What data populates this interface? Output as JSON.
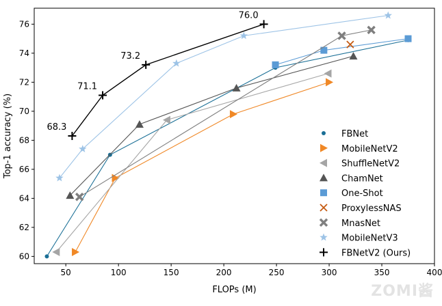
{
  "chart_data": {
    "type": "line",
    "xlabel": "FLOPs (M)",
    "ylabel": "Top-1 accuracy (%)",
    "xlim": [
      20,
      400
    ],
    "ylim": [
      59.5,
      77.1
    ],
    "xticks": [
      50,
      100,
      150,
      200,
      250,
      300,
      350,
      400
    ],
    "yticks": [
      60,
      62,
      64,
      66,
      68,
      70,
      72,
      74,
      76
    ],
    "grid": false,
    "legend_position": "bottom-right",
    "series": [
      {
        "name": "FBNet",
        "color": "#1a6f96",
        "marker": "circle",
        "x": [
          32,
          92,
          249,
          375
        ],
        "y": [
          60.0,
          67.0,
          73.0,
          74.9
        ]
      },
      {
        "name": "MobileNetV2",
        "color": "#f08826",
        "marker": "triangle-right",
        "x": [
          59,
          97,
          209,
          300
        ],
        "y": [
          60.3,
          65.4,
          69.8,
          72.0
        ]
      },
      {
        "name": "ShuffleNetV2",
        "color": "#a5a5a5",
        "marker": "triangle-left",
        "x": [
          41,
          146,
          299
        ],
        "y": [
          60.3,
          69.4,
          72.6
        ]
      },
      {
        "name": "ChamNet",
        "color": "#555555",
        "marker": "triangle-up",
        "x": [
          54,
          120,
          212,
          323
        ],
        "y": [
          64.2,
          69.1,
          71.6,
          73.8
        ]
      },
      {
        "name": "One-Shot",
        "color": "#5b9bd5",
        "marker": "square",
        "x": [
          249,
          295,
          375
        ],
        "y": [
          73.2,
          74.2,
          75.0
        ]
      },
      {
        "name": "ProxylessNAS",
        "color": "#c55a11",
        "marker": "x",
        "x": [
          320
        ],
        "y": [
          74.6
        ]
      },
      {
        "name": "MnasNet",
        "color": "#7f7f7f",
        "marker": "thick-x",
        "x": [
          63,
          312,
          340
        ],
        "y": [
          64.1,
          75.2,
          75.6
        ]
      },
      {
        "name": "MobileNetV3",
        "color": "#9dc3e6",
        "marker": "star",
        "x": [
          44,
          66,
          155,
          219,
          356
        ],
        "y": [
          65.4,
          67.4,
          73.3,
          75.2,
          76.6
        ]
      },
      {
        "name": "FBNetV2 (Ours)",
        "color": "#000000",
        "marker": "plus",
        "x": [
          56,
          85,
          126,
          238
        ],
        "y": [
          68.3,
          71.1,
          73.2,
          76.0
        ]
      }
    ],
    "annotations": [
      {
        "text": "68.3",
        "x": 56,
        "y": 68.3
      },
      {
        "text": "71.1",
        "x": 85,
        "y": 71.1
      },
      {
        "text": "73.2",
        "x": 126,
        "y": 73.2
      },
      {
        "text": "76.0",
        "x": 238,
        "y": 76.0
      }
    ]
  },
  "watermark": "ZOMI酱"
}
